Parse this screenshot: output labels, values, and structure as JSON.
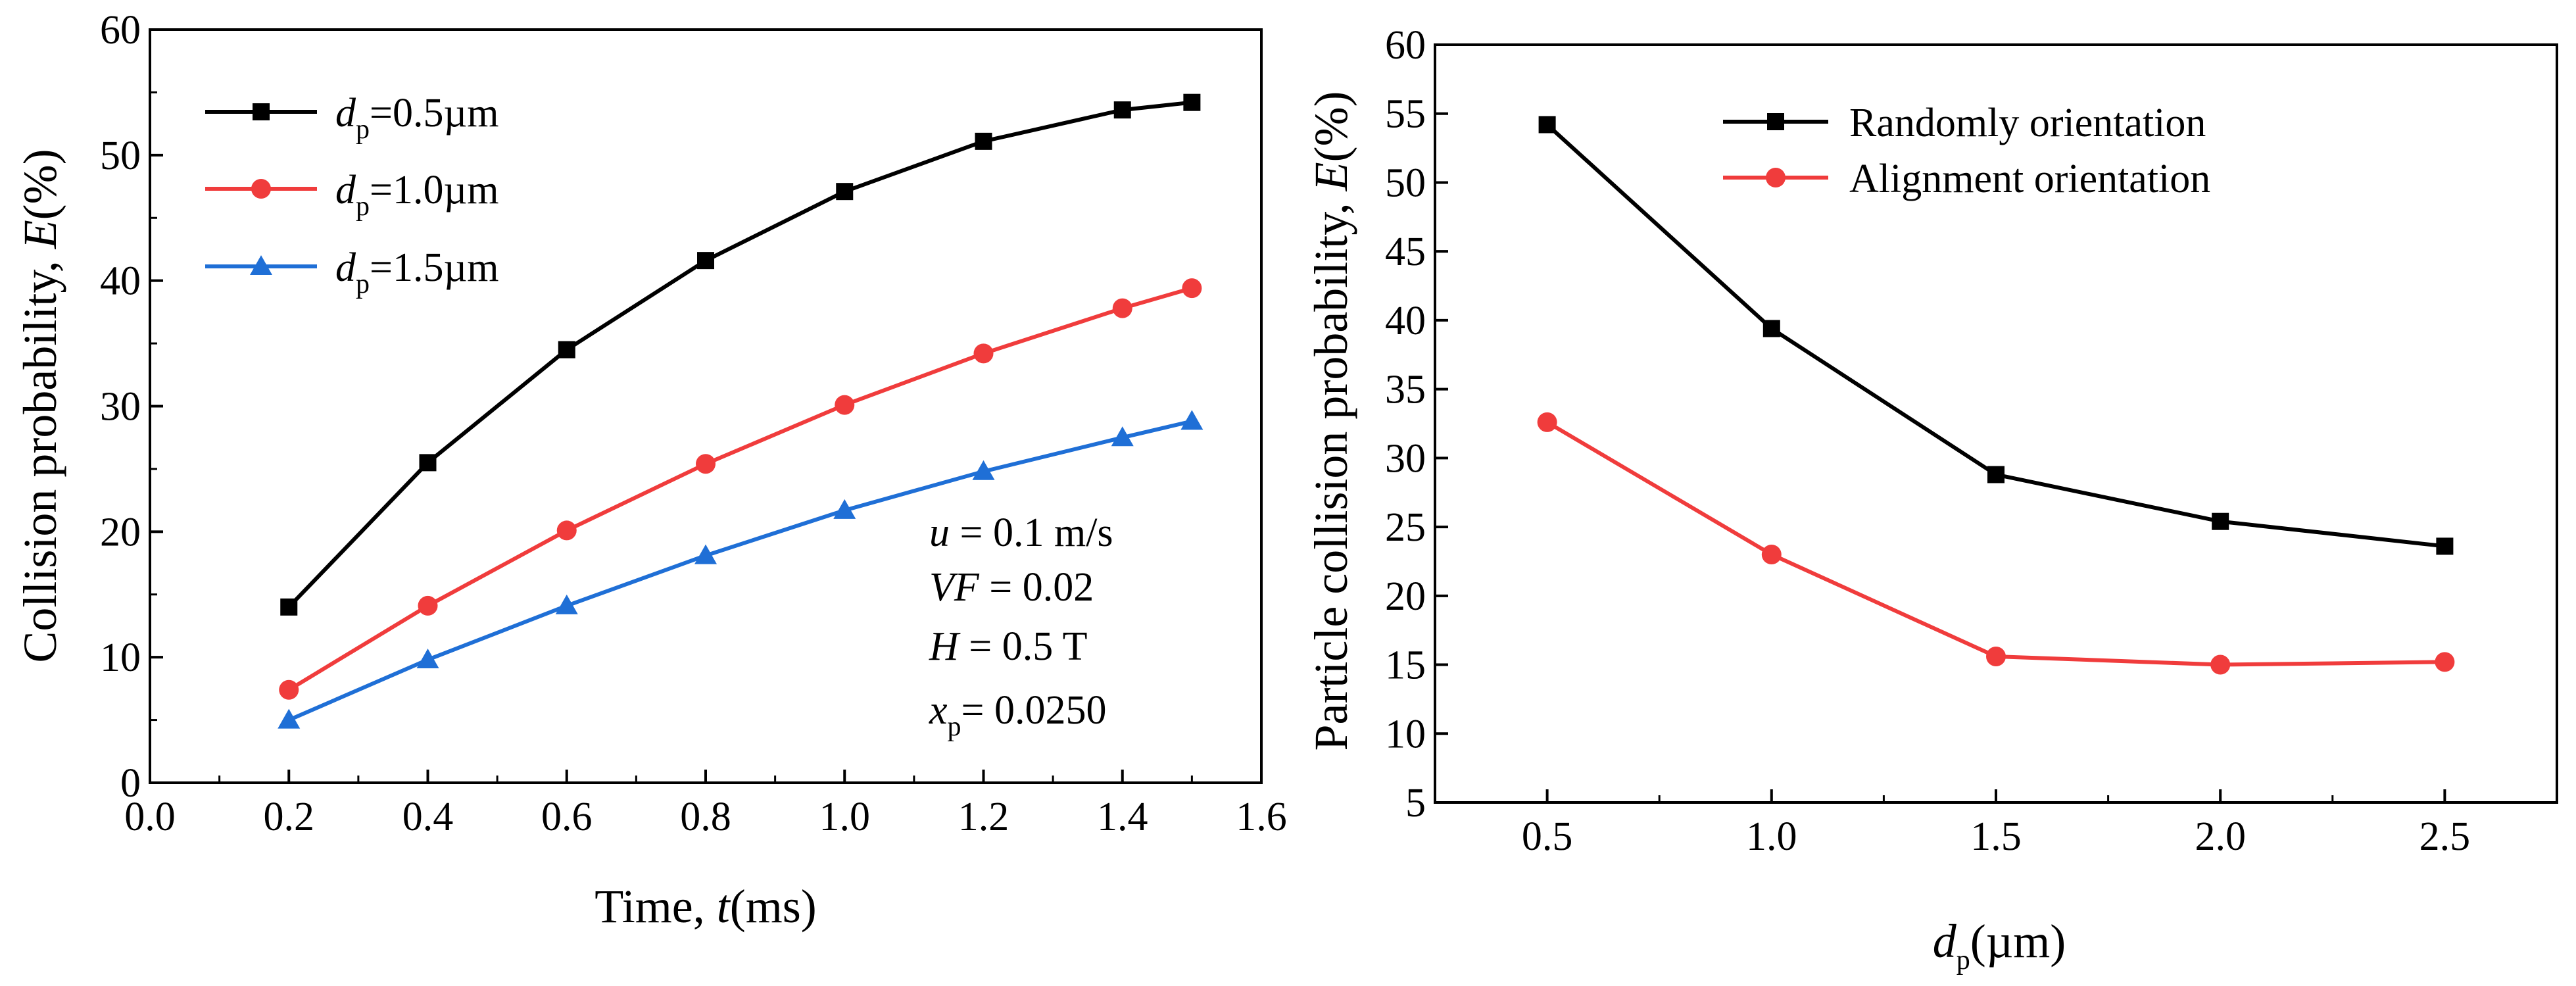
{
  "chart_data": [
    {
      "type": "line",
      "title": "",
      "xlabel": "Time, t(ms)",
      "ylabel": "Collision probability, E(%)",
      "xlim": [
        0,
        1.6
      ],
      "ylim": [
        0,
        60
      ],
      "xticks": [
        0.0,
        0.2,
        0.4,
        0.6,
        0.8,
        1.0,
        1.2,
        1.4,
        1.6
      ],
      "yticks": [
        0,
        10,
        20,
        30,
        40,
        50,
        60
      ],
      "legend_position": "top-left",
      "grid": false,
      "series": [
        {
          "name": "dp=0.5µm",
          "color": "#000000",
          "marker": "square",
          "x": [
            0.2,
            0.4,
            0.6,
            0.8,
            1.0,
            1.2,
            1.4,
            1.5
          ],
          "y": [
            14.0,
            25.5,
            34.5,
            41.6,
            47.1,
            51.1,
            53.6,
            54.2
          ]
        },
        {
          "name": "dp=1.0µm",
          "color": "#f03c3c",
          "marker": "circle",
          "x": [
            0.2,
            0.4,
            0.6,
            0.8,
            1.0,
            1.2,
            1.4,
            1.5
          ],
          "y": [
            7.4,
            14.1,
            20.1,
            25.4,
            30.1,
            34.2,
            37.8,
            39.4
          ]
        },
        {
          "name": "dp=1.5µm",
          "color": "#1f6fd6",
          "marker": "triangle",
          "x": [
            0.2,
            0.4,
            0.6,
            0.8,
            1.0,
            1.2,
            1.4,
            1.5
          ],
          "y": [
            5.0,
            9.8,
            14.1,
            18.1,
            21.7,
            24.8,
            27.5,
            28.8
          ]
        }
      ],
      "annotations": [
        "u = 0.1 m/s",
        "VF = 0.02",
        "H = 0.5 T",
        "xp= 0.0250"
      ]
    },
    {
      "type": "line",
      "title": "",
      "xlabel": "dp(µm)",
      "ylabel": "Particle collision probability, E(%)",
      "xlim": [
        0.25,
        2.75
      ],
      "ylim": [
        5,
        60
      ],
      "xticks": [
        0.5,
        1.0,
        1.5,
        2.0,
        2.5
      ],
      "yticks": [
        5,
        10,
        15,
        20,
        25,
        30,
        35,
        40,
        45,
        50,
        55,
        60
      ],
      "legend_position": "top-center",
      "grid": false,
      "series": [
        {
          "name": "Randomly orientation",
          "color": "#000000",
          "marker": "square",
          "x": [
            0.5,
            1.0,
            1.5,
            2.0,
            2.5
          ],
          "y": [
            54.2,
            39.4,
            28.8,
            25.4,
            23.6
          ]
        },
        {
          "name": "Alignment orientation",
          "color": "#f03c3c",
          "marker": "circle",
          "x": [
            0.5,
            1.0,
            1.5,
            2.0,
            2.5
          ],
          "y": [
            32.6,
            23.0,
            15.6,
            15.0,
            15.2
          ]
        }
      ]
    }
  ]
}
